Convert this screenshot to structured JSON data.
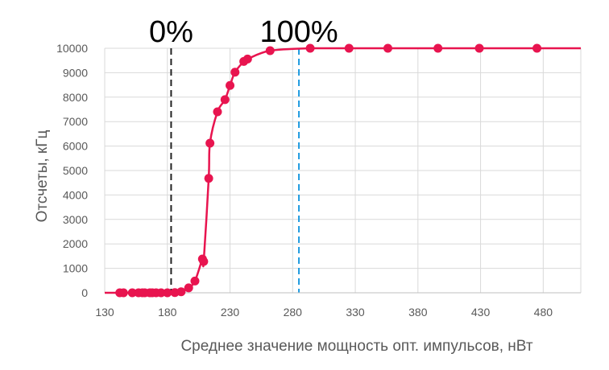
{
  "chart_data": {
    "type": "scatter",
    "title": "",
    "xlabel": "Среднее значение мощность опт. импульсов, нВт",
    "ylabel": "Отсчеты, кГц",
    "xlim": [
      130,
      510
    ],
    "ylim": [
      0,
      10000
    ],
    "xticks": [
      130,
      180,
      230,
      280,
      330,
      380,
      430,
      480
    ],
    "yticks": [
      0,
      1000,
      2000,
      3000,
      4000,
      5000,
      6000,
      7000,
      8000,
      9000,
      10000
    ],
    "grid": "vertical-and-horizontal",
    "colors": {
      "series": "#e8144f",
      "grid": "#d9d9d9",
      "marker_0": "#222222",
      "marker_100": "#1e9be0"
    },
    "annotations": [
      {
        "text": "0%",
        "x": 183,
        "style": "dashed-line",
        "color": "#222222"
      },
      {
        "text": "100%",
        "x": 285,
        "style": "dashed-line",
        "color": "#1e9be0"
      }
    ],
    "series": [
      {
        "points": [
          [
            142,
            0
          ],
          [
            145,
            0
          ],
          [
            152,
            0
          ],
          [
            157,
            0
          ],
          [
            160,
            0
          ],
          [
            162,
            0
          ],
          [
            166,
            0
          ],
          [
            168,
            0
          ],
          [
            171,
            0
          ],
          [
            175,
            0
          ],
          [
            180,
            0
          ],
          [
            186,
            10
          ],
          [
            191,
            40
          ],
          [
            197,
            200
          ],
          [
            202,
            480
          ],
          [
            208,
            1380
          ],
          [
            209,
            1280
          ],
          [
            213,
            4680
          ],
          [
            214,
            6120
          ],
          [
            220,
            7400
          ],
          [
            226,
            7900
          ],
          [
            230,
            8480
          ],
          [
            234,
            9020
          ],
          [
            241,
            9460
          ],
          [
            244,
            9560
          ],
          [
            262,
            9900
          ],
          [
            294,
            10000
          ],
          [
            325,
            10000
          ],
          [
            356,
            10000
          ],
          [
            396,
            10000
          ],
          [
            429,
            10000
          ],
          [
            475,
            10000
          ]
        ]
      }
    ]
  }
}
